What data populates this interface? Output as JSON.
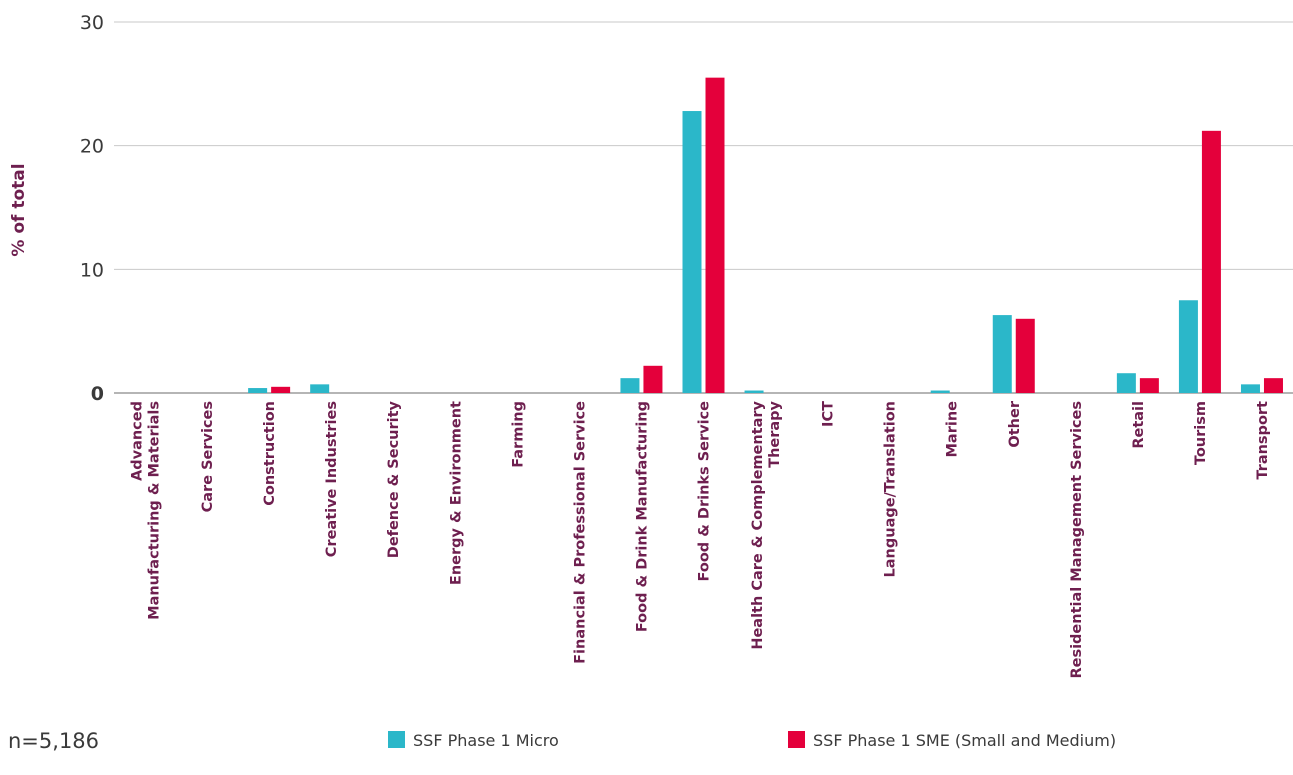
{
  "chart_data": {
    "type": "bar",
    "categories": [
      [
        "Advanced",
        "Manufacturing & Materials"
      ],
      [
        "Care Services"
      ],
      [
        "Construction"
      ],
      [
        "Creative Industries"
      ],
      [
        "Defence & Security"
      ],
      [
        "Energy & Environment"
      ],
      [
        "Farming"
      ],
      [
        "Financial & Professional Service"
      ],
      [
        "Food & Drink Manufacturing"
      ],
      [
        "Food & Drinks Service"
      ],
      [
        "Health Care & Complementary",
        "Therapy"
      ],
      [
        "ICT"
      ],
      [
        "Language/Translation"
      ],
      [
        "Marine"
      ],
      [
        "Other"
      ],
      [
        "Residential Management Services"
      ],
      [
        "Retail"
      ],
      [
        "Tourism"
      ],
      [
        "Transport"
      ]
    ],
    "series": [
      {
        "name": "SSF Phase 1 Micro",
        "color": "#2bb7c9",
        "values": [
          0,
          0,
          0.4,
          0.7,
          0,
          0,
          0,
          0,
          1.2,
          22.8,
          0.2,
          0,
          0,
          0.2,
          6.3,
          0,
          1.6,
          7.5,
          0.7
        ]
      },
      {
        "name": "SSF Phase 1 SME (Small and Medium)",
        "color": "#e4003b",
        "values": [
          0,
          0,
          0.5,
          0,
          0,
          0,
          0,
          0,
          2.2,
          25.5,
          0,
          0,
          0,
          0,
          6.0,
          0,
          1.2,
          21.2,
          1.2
        ]
      }
    ],
    "ylabel": "% of total",
    "xlabel": "",
    "ylim": [
      0,
      30
    ],
    "yticks": [
      "0",
      "10",
      "20",
      "30"
    ],
    "grid": true,
    "legend_position": "bottom"
  },
  "note": "n=5,186"
}
